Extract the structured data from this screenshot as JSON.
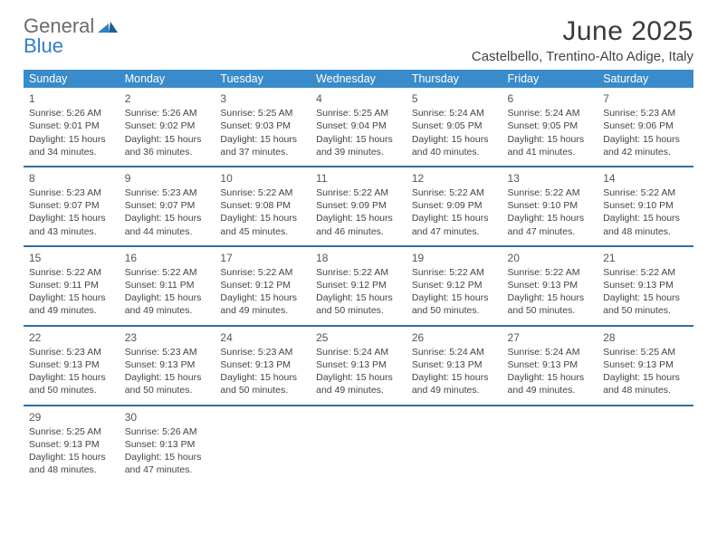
{
  "brand": {
    "name_a": "General",
    "name_b": "Blue"
  },
  "title": "June 2025",
  "location": "Castelbello, Trentino-Alto Adige, Italy",
  "colors": {
    "header_bg": "#3a8bc9",
    "header_text": "#ffffff",
    "rule": "#2f6fa6",
    "page_bg": "#ffffff",
    "text": "#444444",
    "title_text": "#3a3a3a",
    "brand_gray": "#6b6b6b",
    "brand_blue": "#2f7fc2"
  },
  "dow": [
    "Sunday",
    "Monday",
    "Tuesday",
    "Wednesday",
    "Thursday",
    "Friday",
    "Saturday"
  ],
  "weeks": [
    [
      {
        "n": "1",
        "sr": "Sunrise: 5:26 AM",
        "ss": "Sunset: 9:01 PM",
        "d1": "Daylight: 15 hours",
        "d2": "and 34 minutes."
      },
      {
        "n": "2",
        "sr": "Sunrise: 5:26 AM",
        "ss": "Sunset: 9:02 PM",
        "d1": "Daylight: 15 hours",
        "d2": "and 36 minutes."
      },
      {
        "n": "3",
        "sr": "Sunrise: 5:25 AM",
        "ss": "Sunset: 9:03 PM",
        "d1": "Daylight: 15 hours",
        "d2": "and 37 minutes."
      },
      {
        "n": "4",
        "sr": "Sunrise: 5:25 AM",
        "ss": "Sunset: 9:04 PM",
        "d1": "Daylight: 15 hours",
        "d2": "and 39 minutes."
      },
      {
        "n": "5",
        "sr": "Sunrise: 5:24 AM",
        "ss": "Sunset: 9:05 PM",
        "d1": "Daylight: 15 hours",
        "d2": "and 40 minutes."
      },
      {
        "n": "6",
        "sr": "Sunrise: 5:24 AM",
        "ss": "Sunset: 9:05 PM",
        "d1": "Daylight: 15 hours",
        "d2": "and 41 minutes."
      },
      {
        "n": "7",
        "sr": "Sunrise: 5:23 AM",
        "ss": "Sunset: 9:06 PM",
        "d1": "Daylight: 15 hours",
        "d2": "and 42 minutes."
      }
    ],
    [
      {
        "n": "8",
        "sr": "Sunrise: 5:23 AM",
        "ss": "Sunset: 9:07 PM",
        "d1": "Daylight: 15 hours",
        "d2": "and 43 minutes."
      },
      {
        "n": "9",
        "sr": "Sunrise: 5:23 AM",
        "ss": "Sunset: 9:07 PM",
        "d1": "Daylight: 15 hours",
        "d2": "and 44 minutes."
      },
      {
        "n": "10",
        "sr": "Sunrise: 5:22 AM",
        "ss": "Sunset: 9:08 PM",
        "d1": "Daylight: 15 hours",
        "d2": "and 45 minutes."
      },
      {
        "n": "11",
        "sr": "Sunrise: 5:22 AM",
        "ss": "Sunset: 9:09 PM",
        "d1": "Daylight: 15 hours",
        "d2": "and 46 minutes."
      },
      {
        "n": "12",
        "sr": "Sunrise: 5:22 AM",
        "ss": "Sunset: 9:09 PM",
        "d1": "Daylight: 15 hours",
        "d2": "and 47 minutes."
      },
      {
        "n": "13",
        "sr": "Sunrise: 5:22 AM",
        "ss": "Sunset: 9:10 PM",
        "d1": "Daylight: 15 hours",
        "d2": "and 47 minutes."
      },
      {
        "n": "14",
        "sr": "Sunrise: 5:22 AM",
        "ss": "Sunset: 9:10 PM",
        "d1": "Daylight: 15 hours",
        "d2": "and 48 minutes."
      }
    ],
    [
      {
        "n": "15",
        "sr": "Sunrise: 5:22 AM",
        "ss": "Sunset: 9:11 PM",
        "d1": "Daylight: 15 hours",
        "d2": "and 49 minutes."
      },
      {
        "n": "16",
        "sr": "Sunrise: 5:22 AM",
        "ss": "Sunset: 9:11 PM",
        "d1": "Daylight: 15 hours",
        "d2": "and 49 minutes."
      },
      {
        "n": "17",
        "sr": "Sunrise: 5:22 AM",
        "ss": "Sunset: 9:12 PM",
        "d1": "Daylight: 15 hours",
        "d2": "and 49 minutes."
      },
      {
        "n": "18",
        "sr": "Sunrise: 5:22 AM",
        "ss": "Sunset: 9:12 PM",
        "d1": "Daylight: 15 hours",
        "d2": "and 50 minutes."
      },
      {
        "n": "19",
        "sr": "Sunrise: 5:22 AM",
        "ss": "Sunset: 9:12 PM",
        "d1": "Daylight: 15 hours",
        "d2": "and 50 minutes."
      },
      {
        "n": "20",
        "sr": "Sunrise: 5:22 AM",
        "ss": "Sunset: 9:13 PM",
        "d1": "Daylight: 15 hours",
        "d2": "and 50 minutes."
      },
      {
        "n": "21",
        "sr": "Sunrise: 5:22 AM",
        "ss": "Sunset: 9:13 PM",
        "d1": "Daylight: 15 hours",
        "d2": "and 50 minutes."
      }
    ],
    [
      {
        "n": "22",
        "sr": "Sunrise: 5:23 AM",
        "ss": "Sunset: 9:13 PM",
        "d1": "Daylight: 15 hours",
        "d2": "and 50 minutes."
      },
      {
        "n": "23",
        "sr": "Sunrise: 5:23 AM",
        "ss": "Sunset: 9:13 PM",
        "d1": "Daylight: 15 hours",
        "d2": "and 50 minutes."
      },
      {
        "n": "24",
        "sr": "Sunrise: 5:23 AM",
        "ss": "Sunset: 9:13 PM",
        "d1": "Daylight: 15 hours",
        "d2": "and 50 minutes."
      },
      {
        "n": "25",
        "sr": "Sunrise: 5:24 AM",
        "ss": "Sunset: 9:13 PM",
        "d1": "Daylight: 15 hours",
        "d2": "and 49 minutes."
      },
      {
        "n": "26",
        "sr": "Sunrise: 5:24 AM",
        "ss": "Sunset: 9:13 PM",
        "d1": "Daylight: 15 hours",
        "d2": "and 49 minutes."
      },
      {
        "n": "27",
        "sr": "Sunrise: 5:24 AM",
        "ss": "Sunset: 9:13 PM",
        "d1": "Daylight: 15 hours",
        "d2": "and 49 minutes."
      },
      {
        "n": "28",
        "sr": "Sunrise: 5:25 AM",
        "ss": "Sunset: 9:13 PM",
        "d1": "Daylight: 15 hours",
        "d2": "and 48 minutes."
      }
    ],
    [
      {
        "n": "29",
        "sr": "Sunrise: 5:25 AM",
        "ss": "Sunset: 9:13 PM",
        "d1": "Daylight: 15 hours",
        "d2": "and 48 minutes."
      },
      {
        "n": "30",
        "sr": "Sunrise: 5:26 AM",
        "ss": "Sunset: 9:13 PM",
        "d1": "Daylight: 15 hours",
        "d2": "and 47 minutes."
      },
      null,
      null,
      null,
      null,
      null
    ]
  ]
}
